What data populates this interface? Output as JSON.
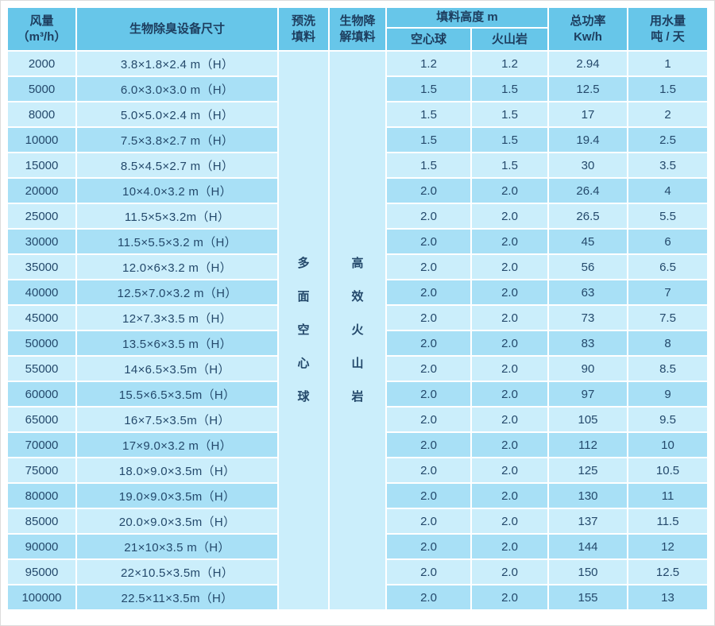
{
  "colors": {
    "header_bg": "#67c6e9",
    "row_light": "#cbeefb",
    "row_dark": "#a8e0f6",
    "merged_bg": "#c5edfa",
    "header_text": "#1d3d5e",
    "data_text": "#24496b",
    "page_bg": "#ffffff",
    "edge_border": "#dcdcdc",
    "gap": "#ffffff"
  },
  "table": {
    "header": {
      "airflow_line1": "风量",
      "airflow_line2": "（m³/h）",
      "size": "生物除臭设备尺寸",
      "prewash_line1": "预洗",
      "prewash_line2": "填料",
      "bio_line1": "生物降",
      "bio_line2": "解填料",
      "filler_height_group": "填料高度 m",
      "sub_hollow_ball": "空心球",
      "sub_volcanic_rock": "火山岩",
      "power_line1": "总功率",
      "power_line2": "Kw/h",
      "water_line1": "用水量",
      "water_line2": "吨 / 天"
    },
    "merged_columns": {
      "prewash_filler_text": "多面空心球",
      "bio_filler_text": "高效火山岩"
    },
    "rows": [
      {
        "airflow": "2000",
        "size": "3.8×1.8×2.4 m（H）",
        "hollow": "1.2",
        "volcanic": "1.2",
        "power": "2.94",
        "water": "1"
      },
      {
        "airflow": "5000",
        "size": "6.0×3.0×3.0 m（H）",
        "hollow": "1.5",
        "volcanic": "1.5",
        "power": "12.5",
        "water": "1.5"
      },
      {
        "airflow": "8000",
        "size": "5.0×5.0×2.4 m（H）",
        "hollow": "1.5",
        "volcanic": "1.5",
        "power": "17",
        "water": "2"
      },
      {
        "airflow": "10000",
        "size": "7.5×3.8×2.7 m（H）",
        "hollow": "1.5",
        "volcanic": "1.5",
        "power": "19.4",
        "water": "2.5"
      },
      {
        "airflow": "15000",
        "size": "8.5×4.5×2.7 m（H）",
        "hollow": "1.5",
        "volcanic": "1.5",
        "power": "30",
        "water": "3.5"
      },
      {
        "airflow": "20000",
        "size": "10×4.0×3.2 m（H）",
        "hollow": "2.0",
        "volcanic": "2.0",
        "power": "26.4",
        "water": "4"
      },
      {
        "airflow": "25000",
        "size": "11.5×5×3.2m（H）",
        "hollow": "2.0",
        "volcanic": "2.0",
        "power": "26.5",
        "water": "5.5"
      },
      {
        "airflow": "30000",
        "size": "11.5×5.5×3.2 m（H）",
        "hollow": "2.0",
        "volcanic": "2.0",
        "power": "45",
        "water": "6"
      },
      {
        "airflow": "35000",
        "size": "12.0×6×3.2 m（H）",
        "hollow": "2.0",
        "volcanic": "2.0",
        "power": "56",
        "water": "6.5"
      },
      {
        "airflow": "40000",
        "size": "12.5×7.0×3.2 m（H）",
        "hollow": "2.0",
        "volcanic": "2.0",
        "power": "63",
        "water": "7"
      },
      {
        "airflow": "45000",
        "size": "12×7.3×3.5 m（H）",
        "hollow": "2.0",
        "volcanic": "2.0",
        "power": "73",
        "water": "7.5"
      },
      {
        "airflow": "50000",
        "size": "13.5×6×3.5 m（H）",
        "hollow": "2.0",
        "volcanic": "2.0",
        "power": "83",
        "water": "8"
      },
      {
        "airflow": "55000",
        "size": "14×6.5×3.5m（H）",
        "hollow": "2.0",
        "volcanic": "2.0",
        "power": "90",
        "water": "8.5"
      },
      {
        "airflow": "60000",
        "size": "15.5×6.5×3.5m（H）",
        "hollow": "2.0",
        "volcanic": "2.0",
        "power": "97",
        "water": "9"
      },
      {
        "airflow": "65000",
        "size": "16×7.5×3.5m（H）",
        "hollow": "2.0",
        "volcanic": "2.0",
        "power": "105",
        "water": "9.5"
      },
      {
        "airflow": "70000",
        "size": "17×9.0×3.2 m（H）",
        "hollow": "2.0",
        "volcanic": "2.0",
        "power": "112",
        "water": "10"
      },
      {
        "airflow": "75000",
        "size": "18.0×9.0×3.5m（H）",
        "hollow": "2.0",
        "volcanic": "2.0",
        "power": "125",
        "water": "10.5"
      },
      {
        "airflow": "80000",
        "size": "19.0×9.0×3.5m（H）",
        "hollow": "2.0",
        "volcanic": "2.0",
        "power": "130",
        "water": "11"
      },
      {
        "airflow": "85000",
        "size": "20.0×9.0×3.5m（H）",
        "hollow": "2.0",
        "volcanic": "2.0",
        "power": "137",
        "water": "11.5"
      },
      {
        "airflow": "90000",
        "size": "21×10×3.5 m（H）",
        "hollow": "2.0",
        "volcanic": "2.0",
        "power": "144",
        "water": "12"
      },
      {
        "airflow": "95000",
        "size": "22×10.5×3.5m（H）",
        "hollow": "2.0",
        "volcanic": "2.0",
        "power": "150",
        "water": "12.5"
      },
      {
        "airflow": "100000",
        "size": "22.5×11×3.5m（H）",
        "hollow": "2.0",
        "volcanic": "2.0",
        "power": "155",
        "water": "13"
      }
    ]
  }
}
